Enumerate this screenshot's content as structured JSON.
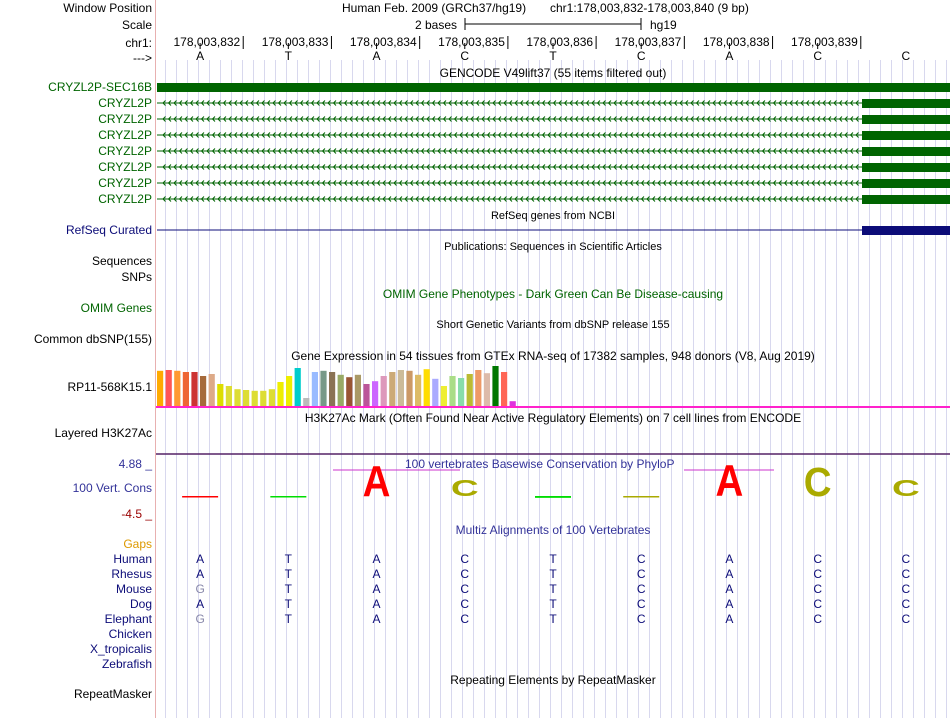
{
  "position_header": {
    "window_position_label": "Window Position",
    "assembly": "Human Feb. 2009 (GRCh37/hg19)",
    "range": "chr1:178,003,832-178,003,840 (9 bp)",
    "scale_label": "Scale",
    "scale_value": "2 bases",
    "scale_db": "hg19",
    "chrom_label": "chr1:",
    "coords": [
      "178,003,832",
      "178,003,833",
      "178,003,834",
      "178,003,835",
      "178,003,836",
      "178,003,837",
      "178,003,838",
      "178,003,839"
    ],
    "strand_label": "--->",
    "bases": [
      "A",
      "T",
      "A",
      "C",
      "T",
      "C",
      "A",
      "C",
      "C"
    ]
  },
  "gencode": {
    "title": "GENCODE V49lift37 (55 items filtered out)",
    "labels": [
      "CRYZL2P-SEC16B",
      "CRYZL2P",
      "CRYZL2P",
      "CRYZL2P",
      "CRYZL2P",
      "CRYZL2P",
      "CRYZL2P",
      "CRYZL2P"
    ],
    "color": "#006400"
  },
  "refseq": {
    "title": "RefSeq genes from NCBI",
    "label": "RefSeq Curated",
    "color": "#0c0c78"
  },
  "publications": {
    "title": "Publications: Sequences in Scientific Articles",
    "label1": "Sequences",
    "label2": "SNPs"
  },
  "omim": {
    "title": "OMIM Gene Phenotypes - Dark Green Can Be Disease-causing",
    "label": "OMIM Genes",
    "color": "#006400"
  },
  "dbsnp": {
    "title": "Short Genetic Variants from dbSNP release 155",
    "label": "Common dbSNP(155)"
  },
  "gtex": {
    "title": "Gene Expression in 54 tissues from GTEx RNA-seq of 17382 samples, 948 donors (V8, Aug 2019)",
    "label": "RP11-568K15.1",
    "bar_colors": [
      "#FFAA00",
      "#FF5555",
      "#FF9933",
      "#EE6633",
      "#CC3333",
      "#A66A3A",
      "#DDAA88",
      "#DDDD00",
      "#DDDD33",
      "#DDDD33",
      "#DDDD33",
      "#DDDD33",
      "#DDDD33",
      "#DDDD33",
      "#EEEE00",
      "#EEEE00",
      "#00CCCC",
      "#BBBBBB",
      "#99BBFF",
      "#779988",
      "#8B7355",
      "#99AA66",
      "#995533",
      "#AA9966",
      "#BB5599",
      "#CC66FF",
      "#DD99BB",
      "#CCAA77",
      "#CCBB99",
      "#CC9966",
      "#DDBB66",
      "#FFDD00",
      "#AAAAFF",
      "#EEEE33",
      "#AADD88",
      "#88DDAA",
      "#BBBB33",
      "#EE9966",
      "#DDBBAA",
      "#007700",
      "#FF6655",
      "#DD33DD"
    ],
    "bar_values": [
      0.88,
      0.9,
      0.88,
      0.85,
      0.85,
      0.75,
      0.8,
      0.55,
      0.5,
      0.42,
      0.4,
      0.38,
      0.38,
      0.42,
      0.6,
      0.75,
      0.95,
      0.2,
      0.85,
      0.88,
      0.85,
      0.78,
      0.72,
      0.78,
      0.55,
      0.62,
      0.75,
      0.85,
      0.9,
      0.88,
      0.78,
      0.92,
      0.68,
      0.5,
      0.75,
      0.7,
      0.8,
      0.9,
      0.82,
      1.0,
      0.85,
      0.12
    ]
  },
  "h3k27ac": {
    "title": "H3K27Ac Mark (Often Found Near Active Regulatory Elements) on 7 cell lines from ENCODE",
    "label": "Layered H3K27Ac"
  },
  "conservation": {
    "title": "100 vertebrates Basewise Conservation by PhyloP",
    "label": "100 Vert. Cons",
    "max_label": "4.88 _",
    "min_label": "-4.5 _",
    "ymax": 4.88,
    "ymin": -4.5,
    "values": [
      -0.3,
      0.25,
      3.7,
      2.0,
      0.6,
      0.4,
      3.8,
      3.5,
      2.0
    ],
    "base_colors": {
      "A": "#FF0000",
      "T": "#00DD00",
      "C": "#AAAA00",
      "G": "#FF8800"
    },
    "title_color": "#333399",
    "label_color": "#333399",
    "min_color": "#990000"
  },
  "multiz": {
    "title": "Multiz Alignments of 100 Vertebrates",
    "gaps_label": "Gaps",
    "species": [
      {
        "name": "Human",
        "seq": [
          "A",
          "T",
          "A",
          "C",
          "T",
          "C",
          "A",
          "C",
          "C"
        ]
      },
      {
        "name": "Rhesus",
        "seq": [
          "A",
          "T",
          "A",
          "C",
          "T",
          "C",
          "A",
          "C",
          "C"
        ]
      },
      {
        "name": "Mouse",
        "seq": [
          "G",
          "T",
          "A",
          "C",
          "T",
          "C",
          "A",
          "C",
          "C"
        ]
      },
      {
        "name": "Dog",
        "seq": [
          "A",
          "T",
          "A",
          "C",
          "T",
          "C",
          "A",
          "C",
          "C"
        ]
      },
      {
        "name": "Elephant",
        "seq": [
          "G",
          "T",
          "A",
          "C",
          "T",
          "C",
          "A",
          "C",
          "C"
        ]
      },
      {
        "name": "Chicken",
        "seq": []
      },
      {
        "name": "X_tropicalis",
        "seq": []
      },
      {
        "name": "Zebrafish",
        "seq": []
      }
    ],
    "mismatch_color": "#8888AA",
    "base_color": "#0c0c78",
    "gaps_color": "#DD9900"
  },
  "repeatmasker": {
    "title": "Repeating Elements by RepeatMasker",
    "label": "RepeatMasker"
  }
}
